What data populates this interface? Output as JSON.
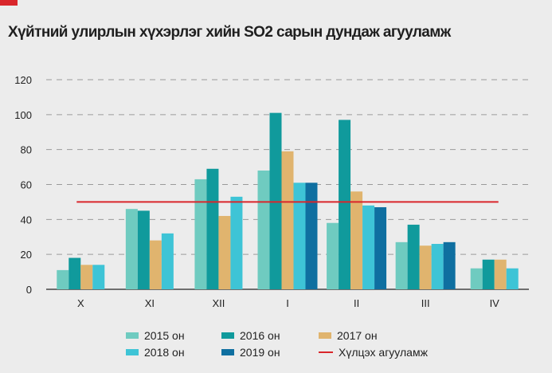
{
  "title": "Хүйтний улирлын хүхэрлэг хийн SO2 сарын дундаж агууламж",
  "colors": {
    "accent_tab": "#d9262b",
    "grid": "#9a9a9a",
    "axis": "#444444",
    "reference_line": "#d9262b"
  },
  "chart_data": {
    "type": "bar",
    "categories": [
      "X",
      "XI",
      "XII",
      "I",
      "II",
      "III",
      "IV"
    ],
    "yticks": [
      "0",
      "20",
      "40",
      "60",
      "80",
      "100",
      "120"
    ],
    "ylim": [
      0,
      120
    ],
    "grid": true,
    "legend_position": "bottom",
    "series": [
      {
        "name": "2015 он",
        "color": "#6fcbc0",
        "values": [
          11,
          46,
          63,
          68,
          38,
          27,
          12
        ]
      },
      {
        "name": "2016 он",
        "color": "#109a9c",
        "values": [
          18,
          45,
          69,
          101,
          97,
          37,
          17
        ]
      },
      {
        "name": "2017 он",
        "color": "#e0b46e",
        "values": [
          14,
          28,
          42,
          79,
          56,
          25,
          17
        ]
      },
      {
        "name": "2018 он",
        "color": "#3ec4d6",
        "values": [
          14,
          32,
          53,
          61,
          48,
          26,
          12
        ]
      },
      {
        "name": "2019 он",
        "color": "#0f6fa0",
        "values": [
          null,
          null,
          null,
          61,
          47,
          27,
          null
        ]
      }
    ],
    "reference_line": {
      "name": "Хүлцэх агууламж",
      "value": 50
    }
  }
}
